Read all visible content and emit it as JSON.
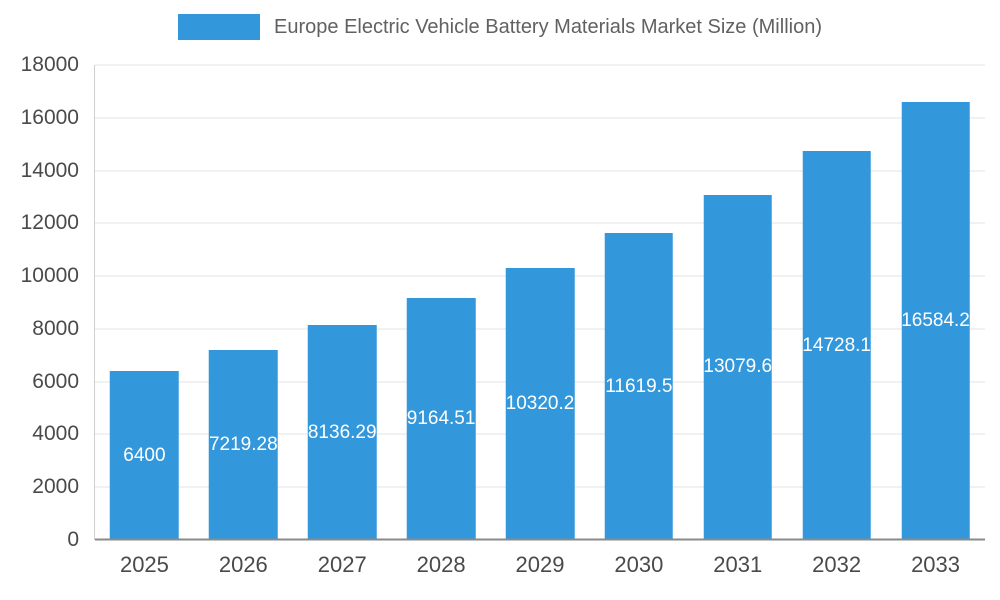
{
  "legend": {
    "label": "Europe Electric Vehicle Battery Materials Market Size (Million)"
  },
  "chart_data": {
    "type": "bar",
    "title": "Europe Electric Vehicle Battery Materials Market Size (Million)",
    "categories": [
      "2025",
      "2026",
      "2027",
      "2028",
      "2029",
      "2030",
      "2031",
      "2032",
      "2033"
    ],
    "values": [
      6400,
      7219.28,
      8136.29,
      9164.51,
      10320.2,
      11619.5,
      13079.6,
      14728.1,
      16584.2
    ],
    "value_labels": [
      "6400",
      "7219.28",
      "8136.29",
      "9164.51",
      "10320.2",
      "11619.5",
      "13079.6",
      "14728.1",
      "16584.2"
    ],
    "xlabel": "",
    "ylabel": "",
    "ylim": [
      0,
      18000
    ],
    "ytick_step": 2000,
    "yticks": [
      0,
      2000,
      4000,
      6000,
      8000,
      10000,
      12000,
      14000,
      16000,
      18000
    ],
    "bar_color": "#3398DB",
    "label_color": "#ffffff",
    "grid": true,
    "legend_position": "top"
  }
}
